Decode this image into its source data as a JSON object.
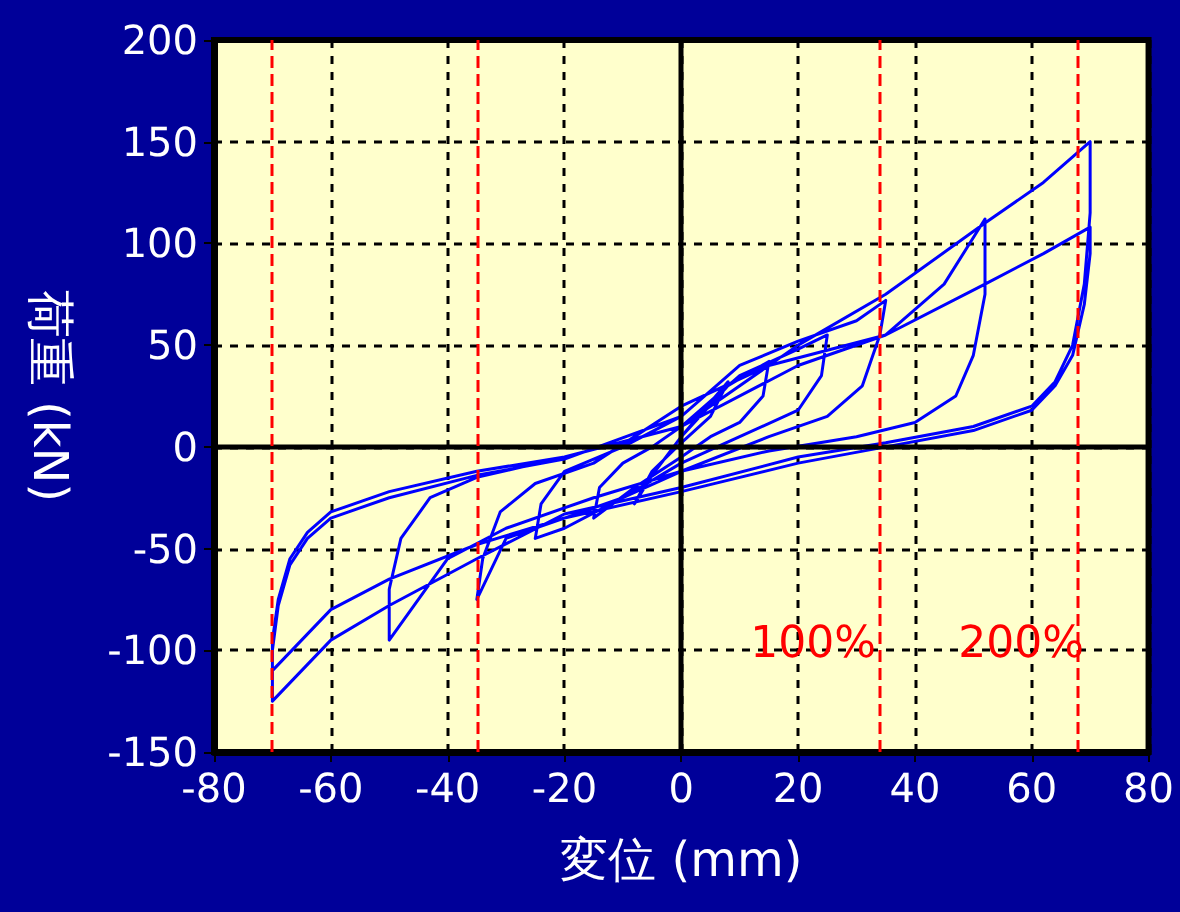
{
  "chart_data": {
    "type": "line",
    "xlabel": "変位 (mm)",
    "ylabel": "荷重 (kN)",
    "xlim": [
      -80,
      80
    ],
    "xticks": [
      -80,
      -60,
      -40,
      -20,
      0,
      20,
      40,
      60,
      80
    ],
    "ylim": [
      -150,
      200
    ],
    "yticks": [
      -150,
      -100,
      -50,
      0,
      50,
      100,
      150,
      200
    ],
    "grid": true,
    "marker": "none",
    "line_style": "solid",
    "series": [
      {
        "color": "#0000ff",
        "x": [
          0,
          5,
          8,
          5,
          0,
          -5,
          -8,
          -5,
          0,
          8,
          15,
          14,
          10,
          5,
          0,
          -8,
          -15,
          -14,
          -10,
          -5,
          0,
          10,
          20,
          25,
          24,
          20,
          10,
          0,
          -10,
          -20,
          -25,
          -24,
          -20,
          -10,
          0,
          10,
          20,
          30,
          35,
          34,
          31,
          25,
          15,
          0,
          -10,
          -20,
          -30,
          -35,
          -34,
          -31,
          -25,
          -15,
          0,
          15,
          35,
          45,
          52,
          52,
          50,
          47,
          40,
          30,
          15,
          0,
          -15,
          -30,
          -40,
          -50,
          -50,
          -48,
          -43,
          -35,
          -20,
          0,
          20,
          35,
          52,
          62,
          70,
          70,
          69,
          67,
          64,
          60,
          50,
          35,
          20,
          0,
          -20,
          -35,
          -50,
          -60,
          -70,
          -70,
          -69,
          -67,
          -64,
          -60,
          -50,
          -35,
          -20,
          0,
          20,
          35,
          52,
          62,
          70,
          70,
          69,
          67,
          64,
          60,
          50,
          35,
          20,
          0,
          -20,
          -35,
          -50,
          -60,
          -70,
          -70,
          -69,
          -67,
          -64,
          -60,
          -50,
          -35,
          -20,
          0
        ],
        "values": [
          5,
          22,
          32,
          15,
          2,
          -12,
          -28,
          -14,
          5,
          30,
          42,
          25,
          12,
          5,
          -5,
          -20,
          -35,
          -20,
          -8,
          0,
          10,
          35,
          48,
          55,
          35,
          18,
          5,
          -8,
          -25,
          -40,
          -45,
          -28,
          -12,
          0,
          15,
          40,
          52,
          62,
          72,
          55,
          30,
          15,
          5,
          -12,
          -25,
          -35,
          -45,
          -75,
          -55,
          -32,
          -18,
          -8,
          20,
          40,
          55,
          80,
          112,
          75,
          45,
          25,
          12,
          5,
          -2,
          -12,
          -25,
          -40,
          -55,
          -95,
          -70,
          -45,
          -25,
          -15,
          -5,
          10,
          40,
          55,
          80,
          95,
          108,
          95,
          70,
          45,
          30,
          18,
          8,
          0,
          -8,
          -22,
          -35,
          -48,
          -65,
          -80,
          -110,
          -95,
          -75,
          -55,
          -42,
          -32,
          -22,
          -12,
          -5,
          10,
          50,
          75,
          110,
          130,
          150,
          115,
          80,
          50,
          32,
          20,
          10,
          2,
          -5,
          -20,
          -33,
          -55,
          -78,
          -95,
          -125,
          -100,
          -78,
          -58,
          -45,
          -35,
          -25,
          -14,
          -6,
          15
        ]
      }
    ],
    "ref_lines": [
      {
        "axis": "x",
        "value": -70,
        "color": "#ff0000",
        "line_style": "dashed"
      },
      {
        "axis": "x",
        "value": -35,
        "color": "#ff0000",
        "line_style": "dashed"
      },
      {
        "axis": "x",
        "value": 34,
        "color": "#ff0000",
        "line_style": "dashed"
      },
      {
        "axis": "x",
        "value": 68,
        "color": "#ff0000",
        "line_style": "dashed"
      }
    ],
    "annotations": [
      "100%",
      "200%"
    ]
  }
}
